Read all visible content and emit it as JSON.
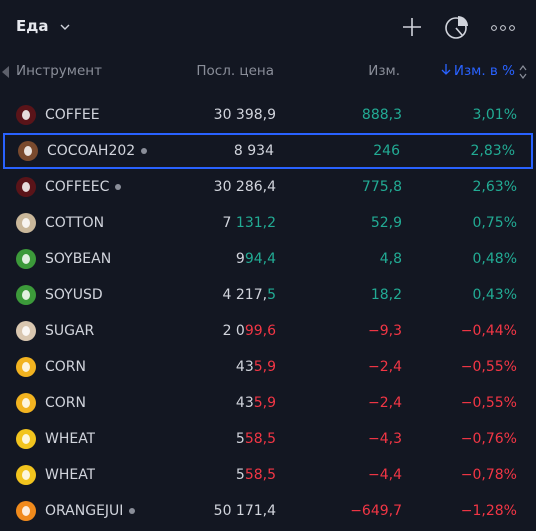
{
  "header": {
    "title": "Еда"
  },
  "columns": {
    "instrument": "Инструмент",
    "price": "Посл. цена",
    "change": "Изм.",
    "change_pct": "Изм. в %"
  },
  "rows": [
    {
      "symbol": "COFFEE",
      "icon_color": "#5a1419",
      "dot": false,
      "direction": "up",
      "price": {
        "fixed": "30 398,9",
        "changed": ""
      },
      "change": "888,3",
      "change_pct": "3,01%"
    },
    {
      "symbol": "COCOAH202",
      "icon_color": "#7a4a2e",
      "dot": true,
      "direction": "up",
      "price": {
        "fixed": "8 934",
        "changed": ""
      },
      "change": "246",
      "change_pct": "2,83%",
      "selected": true
    },
    {
      "symbol": "COFFEEC",
      "icon_color": "#5a1419",
      "dot": true,
      "direction": "up",
      "price": {
        "fixed": "30 286,4",
        "changed": ""
      },
      "change": "775,8",
      "change_pct": "2,63%"
    },
    {
      "symbol": "COTTON",
      "icon_color": "#c9b79a",
      "dot": false,
      "direction": "up",
      "price": {
        "fixed": "7 ",
        "changed": "131,2"
      },
      "change": "52,9",
      "change_pct": "0,75%"
    },
    {
      "symbol": "SOYBEAN",
      "icon_color": "#3c9a3a",
      "dot": false,
      "direction": "up",
      "price": {
        "fixed": "9",
        "changed": "94,4"
      },
      "change": "4,8",
      "change_pct": "0,48%"
    },
    {
      "symbol": "SOYUSD",
      "icon_color": "#3c9a3a",
      "dot": false,
      "direction": "up",
      "price": {
        "fixed": "4 217,",
        "changed": "5"
      },
      "change": "18,2",
      "change_pct": "0,43%"
    },
    {
      "symbol": "SUGAR",
      "icon_color": "#d9c7b0",
      "dot": false,
      "direction": "down",
      "price": {
        "fixed": "2 0",
        "changed": "99,6"
      },
      "change": "−9,3",
      "change_pct": "−0,44%"
    },
    {
      "symbol": "CORN",
      "icon_color": "#f2b320",
      "dot": false,
      "direction": "down",
      "price": {
        "fixed": "43",
        "changed": "5,9"
      },
      "change": "−2,4",
      "change_pct": "−0,55%"
    },
    {
      "symbol": "CORN",
      "icon_color": "#f2b320",
      "dot": false,
      "direction": "down",
      "price": {
        "fixed": "43",
        "changed": "5,9"
      },
      "change": "−2,4",
      "change_pct": "−0,55%"
    },
    {
      "symbol": "WHEAT",
      "icon_color": "#f2c41e",
      "dot": false,
      "direction": "down",
      "price": {
        "fixed": "5",
        "changed": "58,5"
      },
      "change": "−4,3",
      "change_pct": "−0,76%"
    },
    {
      "symbol": "WHEAT",
      "icon_color": "#f2c41e",
      "dot": false,
      "direction": "down",
      "price": {
        "fixed": "5",
        "changed": "58,5"
      },
      "change": "−4,4",
      "change_pct": "−0,78%"
    },
    {
      "symbol": "ORANGEJUI",
      "icon_color": "#f08a1c",
      "dot": true,
      "direction": "down",
      "price": {
        "fixed": "50 171,4",
        "changed": ""
      },
      "change": "−649,7",
      "change_pct": "−1,28%"
    }
  ]
}
